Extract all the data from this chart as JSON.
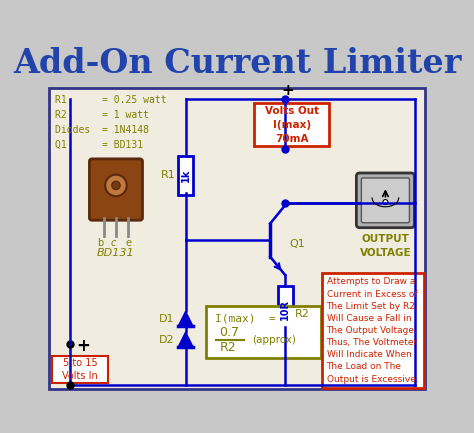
{
  "title": "Add-On Current Limiter",
  "title_color": "#2244aa",
  "bg_color": "#c8c8c8",
  "circuit_bg": "#f0ede0",
  "border_color": "#333388",
  "wire_color": "#0000cc",
  "text_color_olive": "#808000",
  "text_color_red": "#cc2200",
  "text_color_dark": "#000000",
  "specs_text": "R1      = 0.25 watt\nR2      = 1 watt\nDiodes  = 1N4148\nQ1      = BD131",
  "volts_out_text": "Volts Out\nI(max)\n70mA",
  "output_voltage_text": "OUTPUT\nVOLTAGE",
  "input_text": "5 to 15\nVolts In",
  "note_text": "Attempts to Draw a\nCurrent in Excess of\nThe Limit Set by R2,\nWill Cause a Fall in\nThe Output Voltage.\nThus, The Voltmeter\nWill Indicate When\nThe Load on The\nOutput is Excessive.",
  "bd131_label": "BD131",
  "bce_label": "b c e",
  "r1_label": "R1",
  "r2_label": "R2",
  "d1_label": "D1",
  "d2_label": "D2",
  "r1_val": "1k",
  "r2_val": "10R",
  "q1_label": "Q1"
}
